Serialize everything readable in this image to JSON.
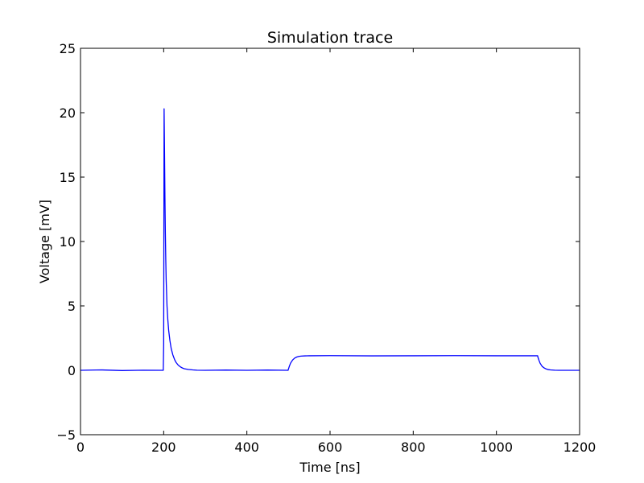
{
  "chart_data": {
    "type": "line",
    "title": "Simulation trace",
    "xlabel": "Time [ns]",
    "ylabel": "Voltage [mV]",
    "xlim": [
      0,
      1200
    ],
    "ylim": [
      -5,
      25
    ],
    "xticks": [
      0,
      200,
      400,
      600,
      800,
      1000,
      1200
    ],
    "yticks": [
      -5,
      0,
      5,
      10,
      15,
      20,
      25
    ],
    "grid": false,
    "series": [
      {
        "color": "#0000ff",
        "x": [
          0,
          50,
          100,
          150,
          199,
          200,
          201,
          202,
          203,
          204,
          205,
          206,
          208,
          210,
          212,
          215,
          218,
          222,
          226,
          230,
          235,
          240,
          245,
          250,
          260,
          270,
          280,
          300,
          350,
          400,
          450,
          499,
          500,
          502,
          505,
          510,
          515,
          520,
          525,
          530,
          540,
          550,
          600,
          700,
          800,
          900,
          1000,
          1099,
          1100,
          1102,
          1105,
          1110,
          1115,
          1120,
          1125,
          1130,
          1140,
          1150,
          1200
        ],
        "y": [
          0.0,
          0.03,
          -0.02,
          0.01,
          0.0,
          2.0,
          20.3,
          17.0,
          13.5,
          10.7,
          8.6,
          7.0,
          5.0,
          3.9,
          3.1,
          2.3,
          1.7,
          1.2,
          0.85,
          0.6,
          0.4,
          0.27,
          0.18,
          0.12,
          0.06,
          0.03,
          0.01,
          0.0,
          0.02,
          0.0,
          0.02,
          0.0,
          0.1,
          0.3,
          0.55,
          0.8,
          0.95,
          1.03,
          1.08,
          1.1,
          1.12,
          1.13,
          1.14,
          1.12,
          1.13,
          1.14,
          1.13,
          1.13,
          1.0,
          0.8,
          0.55,
          0.3,
          0.18,
          0.1,
          0.05,
          0.03,
          0.01,
          0.0,
          0.0
        ]
      }
    ]
  }
}
